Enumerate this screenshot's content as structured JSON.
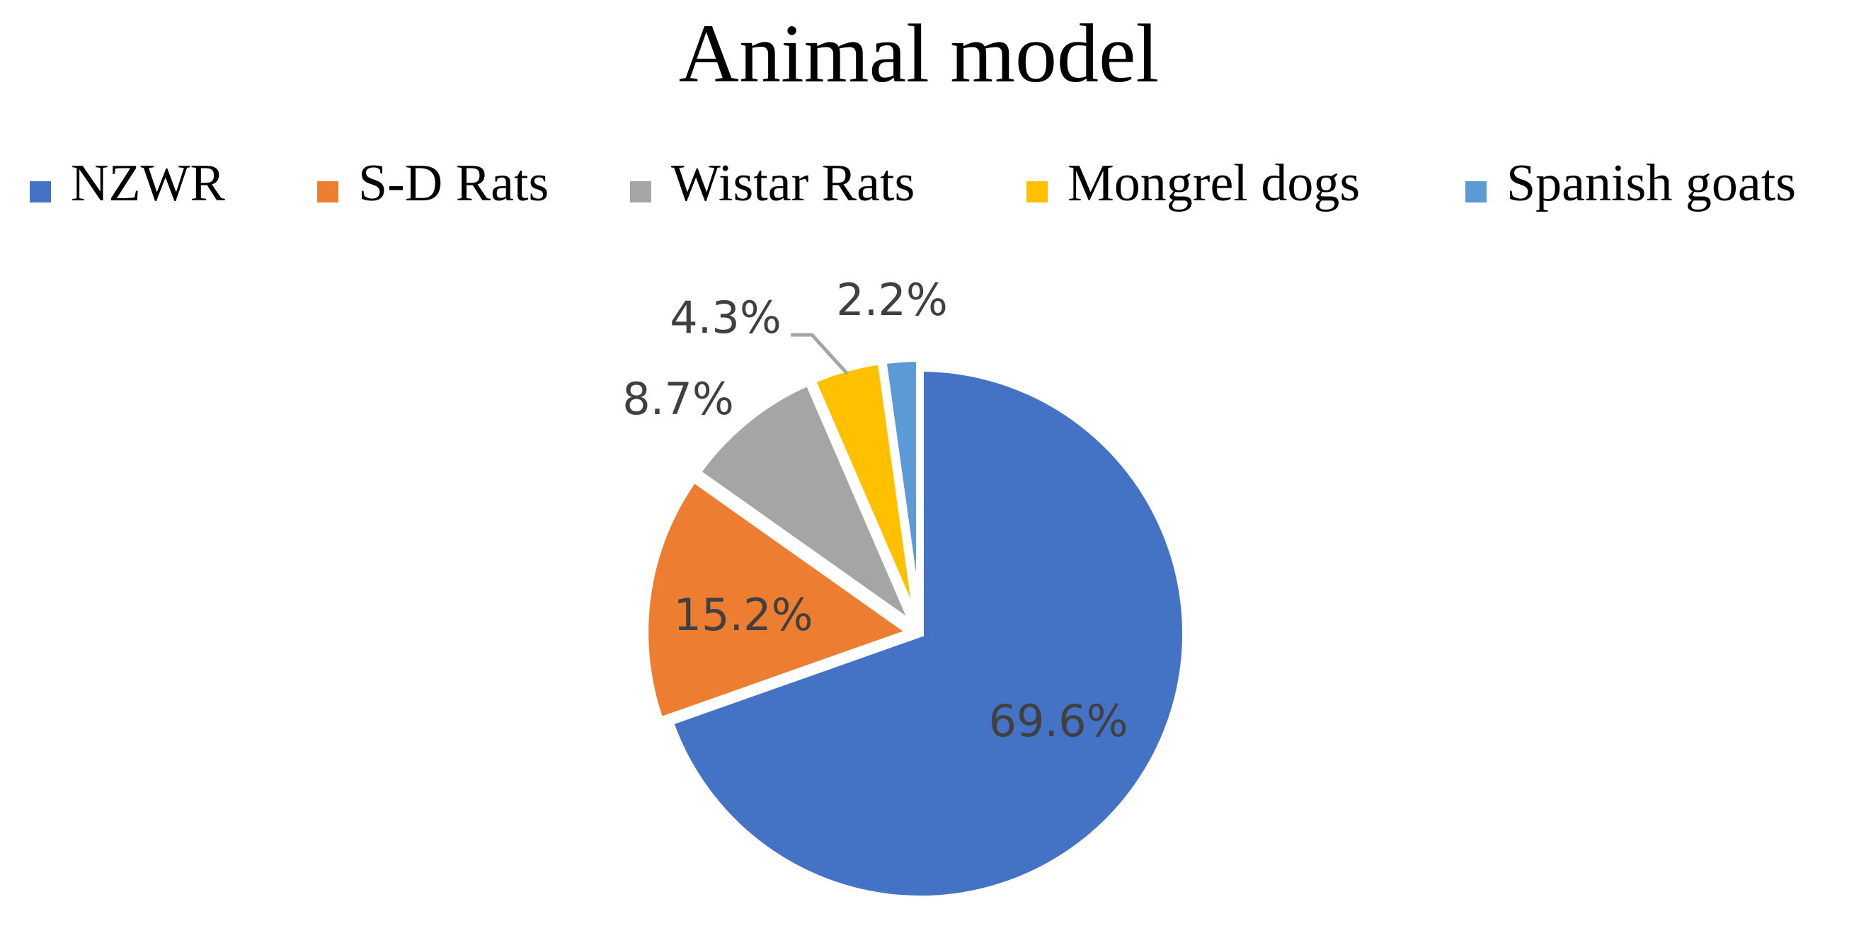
{
  "chart_data": {
    "type": "pie",
    "title": "Animal model",
    "legend_position": "top",
    "categories": [
      "NZWR",
      "S-D Rats",
      "Wistar Rats",
      "Mongrel dogs",
      "Spanish goats"
    ],
    "values": [
      69.6,
      15.2,
      8.7,
      4.3,
      2.2
    ],
    "data_labels": [
      "69.6%",
      "15.2%",
      "8.7%",
      "4.3%",
      "2.2%"
    ],
    "colors": [
      "#4472C4",
      "#ED7D31",
      "#A5A5A5",
      "#FFC000",
      "#5B9BD5"
    ]
  }
}
